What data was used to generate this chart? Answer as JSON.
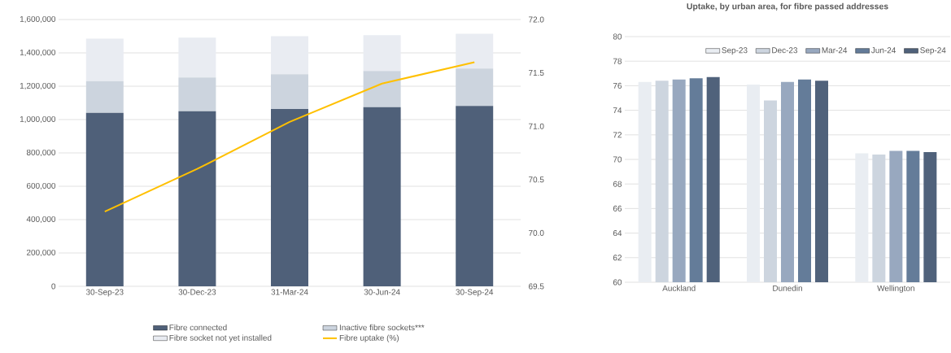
{
  "chart_data": [
    {
      "type": "bar",
      "stacked": true,
      "categories": [
        "30-Sep-23",
        "30-Dec-23",
        "31-Mar-24",
        "30-Jun-24",
        "30-Sep-24"
      ],
      "series": [
        {
          "name": "Fibre connected",
          "color": "#4f6079",
          "values": [
            1040000,
            1050000,
            1063000,
            1074000,
            1082000
          ]
        },
        {
          "name": "Inactive fibre sockets***",
          "color": "#ccd4de",
          "values": [
            191000,
            203000,
            209000,
            217000,
            224000
          ]
        },
        {
          "name": "Fibre socket not yet installed",
          "color": "#e9ecf2",
          "values": [
            254000,
            238000,
            228000,
            215000,
            209000
          ]
        },
        {
          "name": "Fibre uptake (%)",
          "type": "line",
          "axis": "y2",
          "color": "#ffc000",
          "values": [
            70.2,
            70.6,
            71.04,
            71.4,
            71.6
          ]
        }
      ],
      "ylim": [
        0,
        1600000
      ],
      "yticks": [
        0,
        {
          "value": 200000,
          "label": "200,000"
        },
        {
          "value": 400000,
          "label": "400,000"
        },
        {
          "value": 600000,
          "label": "600,000"
        },
        {
          "value": 800000,
          "label": "800,000"
        },
        {
          "value": 1000000,
          "label": "1,000,000"
        },
        {
          "value": 1200000,
          "label": "1,200,000"
        },
        {
          "value": 1400000,
          "label": "1,400,000"
        },
        {
          "value": 1600000,
          "label": "1,600,000"
        }
      ],
      "y2lim": [
        69.5,
        72.0
      ],
      "y2ticks": [
        69.5,
        {
          "value": 70,
          "label": "70.0"
        },
        70.5,
        {
          "value": 71,
          "label": "71.0"
        },
        71.5,
        {
          "value": 72,
          "label": "72.0"
        }
      ],
      "grid": "y",
      "legend": "bottom",
      "line_style": "solid",
      "marker": "none"
    },
    {
      "type": "bar",
      "title": "Uptake, by urban area, for fibre passed addresses",
      "categories": [
        "Auckland",
        "Dunedin",
        "Wellington"
      ],
      "series": [
        {
          "name": "Sep-23",
          "color": "#e9edf2",
          "values": [
            76.3,
            76.1,
            70.5
          ]
        },
        {
          "name": "Dec-23",
          "color": "#cdd5df",
          "values": [
            76.4,
            74.8,
            70.4
          ]
        },
        {
          "name": "Mar-24",
          "color": "#98a8bf",
          "values": [
            76.5,
            76.3,
            70.7
          ]
        },
        {
          "name": "Jun-24",
          "color": "#647c99",
          "values": [
            76.6,
            76.5,
            70.7
          ]
        },
        {
          "name": "Sep-24",
          "color": "#50627b",
          "values": [
            76.7,
            76.4,
            70.6
          ]
        }
      ],
      "ylim": [
        60,
        80
      ],
      "yticks": [
        60,
        62,
        64,
        66,
        68,
        70,
        72,
        74,
        76,
        78,
        80
      ],
      "grid": "y",
      "legend": "top"
    }
  ]
}
